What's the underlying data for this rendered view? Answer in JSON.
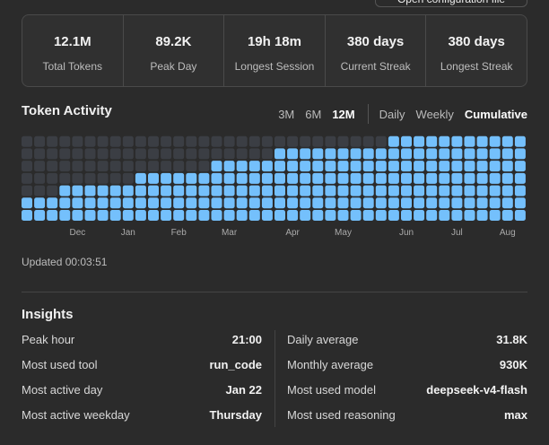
{
  "header": {
    "button": "Open configuration file"
  },
  "stats": [
    {
      "value": "12.1M",
      "label": "Total Tokens"
    },
    {
      "value": "89.2K",
      "label": "Peak Day"
    },
    {
      "value": "19h 18m",
      "label": "Longest Session"
    },
    {
      "value": "380 days",
      "label": "Current Streak"
    },
    {
      "value": "380 days",
      "label": "Longest Streak"
    }
  ],
  "chart_data": {
    "type": "waffle",
    "title": "Token Activity",
    "range_options": [
      {
        "label": "3M",
        "active": false
      },
      {
        "label": "6M",
        "active": false
      },
      {
        "label": "12M",
        "active": true
      }
    ],
    "view_options": [
      {
        "label": "Daily",
        "active": false
      },
      {
        "label": "Weekly",
        "active": false
      },
      {
        "label": "Cumulative",
        "active": true
      }
    ],
    "categories": [
      null,
      null,
      null,
      null,
      "Dec",
      null,
      null,
      null,
      "Jan",
      null,
      null,
      null,
      "Feb",
      null,
      null,
      null,
      "Mar",
      null,
      null,
      null,
      null,
      "Apr",
      null,
      null,
      null,
      "May",
      null,
      null,
      null,
      null,
      "Jun",
      null,
      null,
      null,
      "Jul",
      null,
      null,
      null,
      "Aug",
      null
    ],
    "values": [
      2,
      2,
      2,
      3,
      3,
      3,
      3,
      3,
      3,
      4,
      4,
      4,
      4,
      4,
      4,
      5,
      5,
      5,
      5,
      5,
      6,
      6,
      6,
      6,
      6,
      6,
      6,
      6,
      6,
      7,
      7,
      7,
      7,
      7,
      7,
      7,
      7,
      7,
      7,
      7
    ],
    "ylim": [
      0,
      7
    ],
    "color": "#74c0fc",
    "empty_color": "#3b3e44"
  },
  "updated": "Updated 00:03:51",
  "insights": {
    "title": "Insights",
    "left": [
      {
        "label": "Peak hour",
        "value": "21:00"
      },
      {
        "label": "Most used tool",
        "value": "run_code"
      },
      {
        "label": "Most active day",
        "value": "Jan 22"
      },
      {
        "label": "Most active weekday",
        "value": "Thursday"
      }
    ],
    "right": [
      {
        "label": "Daily average",
        "value": "31.8K"
      },
      {
        "label": "Monthly average",
        "value": "930K"
      },
      {
        "label": "Most used model",
        "value": "deepseek-v4-flash"
      },
      {
        "label": "Most used reasoning",
        "value": "max"
      }
    ]
  }
}
